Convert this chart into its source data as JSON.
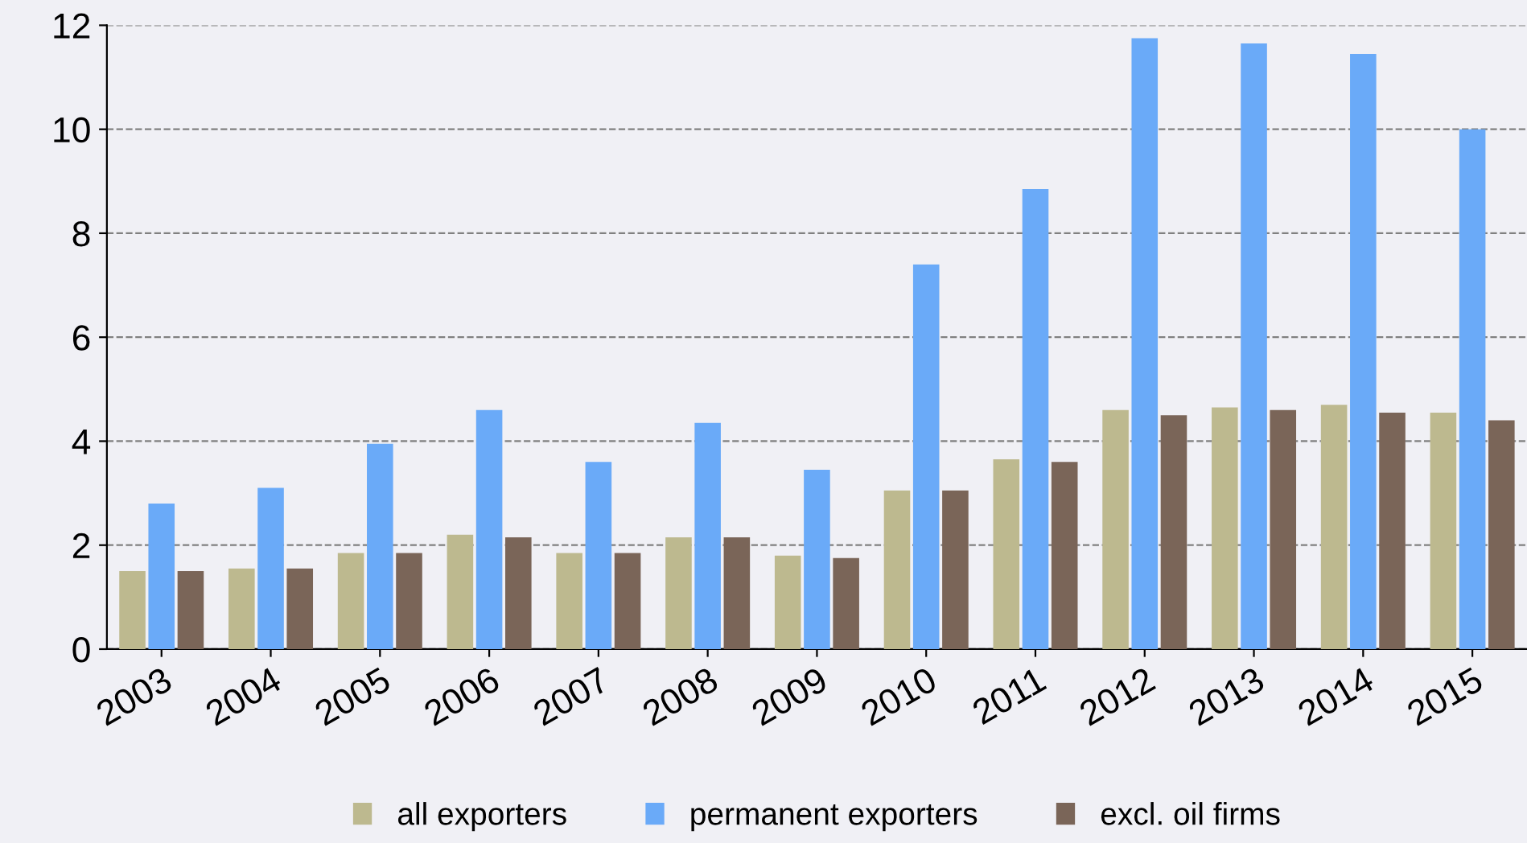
{
  "chart_data": {
    "type": "bar",
    "categories": [
      "2003",
      "2004",
      "2005",
      "2006",
      "2007",
      "2008",
      "2009",
      "2010",
      "2011",
      "2012",
      "2013",
      "2014",
      "2015"
    ],
    "series": [
      {
        "name": "all exporters",
        "color": "#bdb98f",
        "values": [
          1.5,
          1.55,
          1.85,
          2.2,
          1.85,
          2.15,
          1.8,
          3.05,
          3.65,
          4.6,
          4.65,
          4.7,
          4.55
        ]
      },
      {
        "name": "permanent exporters",
        "color": "#6aaaf8",
        "values": [
          2.8,
          3.1,
          3.95,
          4.6,
          3.6,
          4.35,
          3.45,
          7.4,
          8.85,
          11.75,
          11.65,
          11.45,
          10.0
        ]
      },
      {
        "name": "excl. oil firms",
        "color": "#7a6558",
        "values": [
          1.5,
          1.55,
          1.85,
          2.15,
          1.85,
          2.15,
          1.75,
          3.05,
          3.6,
          4.5,
          4.6,
          4.55,
          4.4
        ]
      }
    ],
    "ylim": [
      0,
      12
    ],
    "yticks": [
      0,
      2,
      4,
      6,
      8,
      10,
      12
    ],
    "grid": "y",
    "legend": "bottom"
  }
}
